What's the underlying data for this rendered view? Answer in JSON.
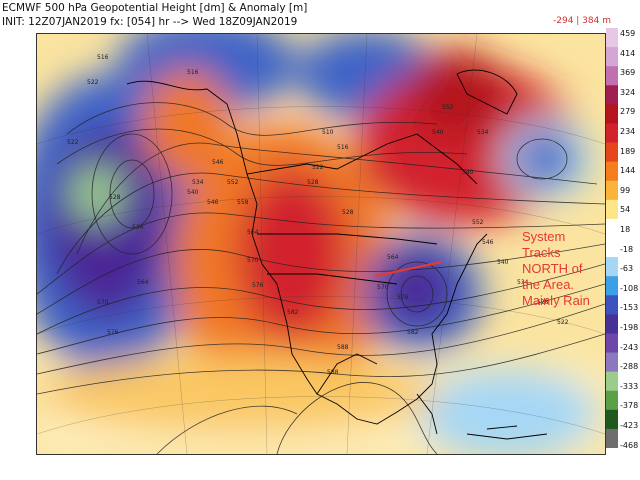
{
  "header": {
    "title": "ECMWF 500 hPa Geopotential Height [dm] & Anomaly [m]",
    "init": "INIT: 12Z07JAN2019 fx: [054] hr --> Wed 18Z09JAN2019",
    "range": "-294 | 384 m"
  },
  "annotation": {
    "lines": [
      "System",
      "Tracks",
      "NORTH of",
      "the Area.",
      "Mainly Rain"
    ]
  },
  "colorbar": {
    "labels": [
      "459",
      "414",
      "369",
      "324",
      "279",
      "234",
      "189",
      "144",
      "99",
      "54",
      "18",
      "-18",
      "-63",
      "-108",
      "-153",
      "-198",
      "-243",
      "-288",
      "-333",
      "-378",
      "-423",
      "-468"
    ],
    "colors": [
      "#e6c8e6",
      "#d4a6d4",
      "#c070b0",
      "#a01e50",
      "#b4141e",
      "#d2232d",
      "#e6461e",
      "#f57d1e",
      "#fab43c",
      "#fde687",
      "#ffffff",
      "#ffffff",
      "#a5d7f5",
      "#3ca0e6",
      "#3c50be",
      "#463296",
      "#6e46aa",
      "#8c78be",
      "#9ccc8c",
      "#5aa046",
      "#1e5a1e",
      "#6e6e6e"
    ]
  },
  "map": {
    "contour_labels": [
      "516",
      "516",
      "522",
      "522",
      "528",
      "534",
      "570",
      "564",
      "576",
      "546",
      "552",
      "558",
      "564",
      "570",
      "576",
      "582",
      "588",
      "510",
      "516",
      "522",
      "528",
      "534",
      "540",
      "546",
      "552",
      "528",
      "540",
      "540",
      "534",
      "564",
      "570",
      "576",
      "582",
      "588",
      "552",
      "546",
      "540",
      "534",
      "528",
      "522"
    ],
    "anomaly_colors": {
      "positive_strong": "#c81e1e",
      "positive": "#f07828",
      "positive_weak": "#fac864",
      "neutral": "#ffffff",
      "negative_weak": "#a5d7f5",
      "negative": "#3c64c8",
      "negative_strong": "#4b2896"
    }
  }
}
